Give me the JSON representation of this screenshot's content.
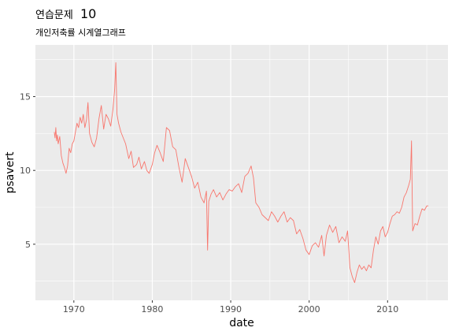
{
  "chart_data": {
    "type": "line",
    "title": "연습문제 10",
    "title_main": "연습문제",
    "title_number": "10",
    "subtitle": "개인저축률 시계열그래프",
    "xlabel": "date",
    "ylabel": "psavert",
    "x_tick_labels": [
      "1970",
      "1980",
      "1990",
      "2000",
      "2010"
    ],
    "x_ticks": [
      1970,
      1980,
      1990,
      2000,
      2010
    ],
    "y_tick_labels": [
      "5",
      "10",
      "15"
    ],
    "y_ticks": [
      5,
      10,
      15
    ],
    "xlim": [
      1965.1,
      2017.7
    ],
    "ylim": [
      1.2,
      18.5
    ],
    "grid": true,
    "line_color": "#F8766D",
    "panel_color": "#EBEBEB",
    "grid_color": "#FFFFFF",
    "x": [
      1967.5,
      1967.6,
      1967.7,
      1967.8,
      1967.9,
      1968.0,
      1968.2,
      1968.4,
      1968.6,
      1968.8,
      1969.0,
      1969.2,
      1969.4,
      1969.6,
      1969.8,
      1970.0,
      1970.2,
      1970.4,
      1970.6,
      1970.8,
      1971.0,
      1971.2,
      1971.4,
      1971.6,
      1971.8,
      1972.0,
      1972.3,
      1972.6,
      1972.9,
      1973.2,
      1973.5,
      1973.8,
      1974.1,
      1974.4,
      1974.7,
      1975.0,
      1975.2,
      1975.35,
      1975.5,
      1975.7,
      1976.0,
      1976.3,
      1976.6,
      1977.0,
      1977.3,
      1977.6,
      1978.0,
      1978.3,
      1978.6,
      1979.0,
      1979.3,
      1979.6,
      1980.0,
      1980.3,
      1980.6,
      1981.0,
      1981.4,
      1981.8,
      1982.2,
      1982.6,
      1983.0,
      1983.4,
      1983.8,
      1984.2,
      1984.6,
      1985.0,
      1985.4,
      1985.8,
      1986.2,
      1986.6,
      1986.9,
      1987.05,
      1987.2,
      1987.5,
      1987.8,
      1988.2,
      1988.6,
      1989.0,
      1989.4,
      1989.8,
      1990.2,
      1990.6,
      1991.0,
      1991.4,
      1991.8,
      1992.2,
      1992.6,
      1992.9,
      1993.2,
      1993.6,
      1994.0,
      1994.4,
      1994.8,
      1995.2,
      1995.6,
      1996.0,
      1996.4,
      1996.8,
      1997.2,
      1997.6,
      1998.0,
      1998.4,
      1998.8,
      1999.2,
      1999.6,
      2000.0,
      2000.4,
      2000.8,
      2001.2,
      2001.6,
      2001.9,
      2002.2,
      2002.6,
      2003.0,
      2003.4,
      2003.8,
      2004.2,
      2004.6,
      2004.9,
      2005.2,
      2005.5,
      2005.8,
      2006.1,
      2006.4,
      2006.7,
      2007.0,
      2007.3,
      2007.6,
      2007.9,
      2008.2,
      2008.5,
      2008.8,
      2009.1,
      2009.4,
      2009.7,
      2010.0,
      2010.3,
      2010.6,
      2010.9,
      2011.2,
      2011.5,
      2011.8,
      2012.1,
      2012.4,
      2012.7,
      2012.9,
      2013.05,
      2013.2,
      2013.5,
      2013.8,
      2014.1,
      2014.4,
      2014.7,
      2015.0,
      2015.2
    ],
    "y": [
      12.6,
      12.2,
      12.9,
      12.0,
      12.4,
      11.8,
      12.3,
      11.0,
      10.5,
      10.2,
      9.8,
      10.3,
      11.5,
      11.2,
      11.8,
      12.0,
      12.6,
      13.2,
      12.9,
      13.6,
      13.2,
      13.8,
      12.9,
      13.4,
      14.6,
      12.5,
      11.9,
      11.6,
      12.2,
      13.5,
      14.4,
      12.8,
      13.8,
      13.5,
      13.0,
      14.2,
      15.5,
      17.3,
      13.8,
      13.2,
      12.6,
      12.2,
      11.8,
      10.8,
      11.3,
      10.2,
      10.4,
      10.9,
      10.1,
      10.6,
      10.0,
      9.8,
      10.4,
      11.2,
      11.7,
      11.2,
      10.6,
      12.9,
      12.7,
      11.6,
      11.4,
      10.2,
      9.2,
      10.8,
      10.2,
      9.6,
      8.8,
      9.2,
      8.2,
      7.8,
      8.6,
      4.6,
      7.9,
      8.4,
      8.7,
      8.2,
      8.5,
      8.0,
      8.4,
      8.7,
      8.6,
      8.9,
      9.1,
      8.5,
      9.6,
      9.8,
      10.3,
      9.5,
      7.8,
      7.5,
      7.0,
      6.8,
      6.6,
      7.2,
      6.9,
      6.5,
      6.9,
      7.2,
      6.5,
      6.8,
      6.6,
      5.7,
      6.0,
      5.4,
      4.6,
      4.3,
      4.9,
      5.1,
      4.8,
      5.6,
      4.2,
      5.6,
      6.3,
      5.8,
      6.2,
      5.1,
      5.5,
      5.2,
      5.9,
      3.4,
      2.8,
      2.4,
      3.1,
      3.6,
      3.3,
      3.5,
      3.2,
      3.6,
      3.4,
      4.6,
      5.5,
      5.0,
      5.9,
      6.2,
      5.5,
      5.8,
      6.4,
      6.9,
      7.0,
      7.2,
      7.1,
      7.5,
      8.2,
      8.5,
      9.0,
      9.4,
      12.0,
      5.9,
      6.4,
      6.3,
      6.9,
      7.4,
      7.3,
      7.6,
      7.6
    ]
  }
}
